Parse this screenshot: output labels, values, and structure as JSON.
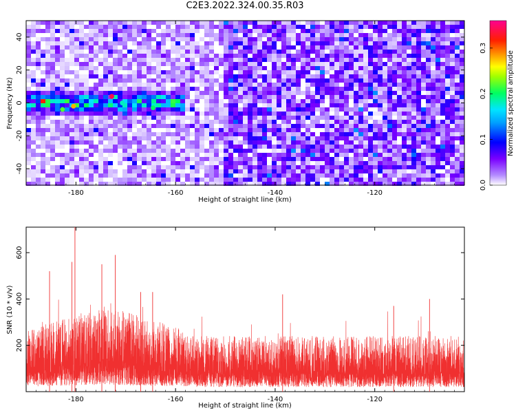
{
  "title": "C2E3.2022.324.00.35.R03",
  "colors": {
    "snr_line": "#f03030",
    "colormap": [
      "#ffffff",
      "#7a00ff",
      "#0000ff",
      "#00e5ff",
      "#00ff40",
      "#ffff00",
      "#ff8c00",
      "#ff0000",
      "#ff0090"
    ]
  },
  "chart_data": [
    {
      "type": "heatmap",
      "name": "spectrogram",
      "xlabel": "Height of straight line (km)",
      "ylabel": "Frequency (Hz)",
      "xlim": [
        -190,
        -102
      ],
      "ylim": [
        -50,
        50
      ],
      "x_ticks": [
        -180,
        -160,
        -140,
        -120
      ],
      "y_ticks": [
        -40,
        -20,
        0,
        20,
        40
      ],
      "colorbar": {
        "label": "Normalized spectral amplitude",
        "range": [
          0.0,
          0.36
        ],
        "ticks": [
          0.0,
          0.1,
          0.2,
          0.3
        ]
      },
      "features": [
        {
          "x_range": [
            -190,
            -158
          ],
          "freq_center": 0,
          "freq_halfwidth": 8,
          "peak_amplitude": 0.36
        }
      ],
      "background_amplitude": [
        0.0,
        0.1
      ]
    },
    {
      "type": "line",
      "name": "snr",
      "xlabel": "Height of straight line (km)",
      "ylabel": "SNR (10 * v/v)",
      "xlim": [
        -190,
        -102
      ],
      "ylim": [
        0,
        710
      ],
      "x_ticks": [
        -180,
        -160,
        -140,
        -120
      ],
      "y_ticks": [
        200,
        400,
        600
      ],
      "baseline_mean": 130,
      "elevated_region": {
        "x_range": [
          -190,
          -158
        ],
        "mean": 200
      },
      "notable_peaks": [
        {
          "x": -180.2,
          "y": 710
        },
        {
          "x": -180.8,
          "y": 560
        },
        {
          "x": -172.1,
          "y": 590
        },
        {
          "x": -167.0,
          "y": 430
        },
        {
          "x": -164.6,
          "y": 430
        },
        {
          "x": -174.8,
          "y": 550
        },
        {
          "x": -185.3,
          "y": 520
        },
        {
          "x": -138.5,
          "y": 420
        },
        {
          "x": -109.0,
          "y": 400
        },
        {
          "x": -116.2,
          "y": 370
        }
      ]
    }
  ]
}
